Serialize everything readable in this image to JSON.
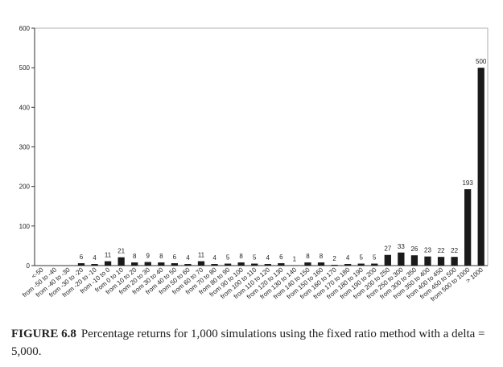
{
  "chart_data": {
    "type": "bar",
    "categories": [
      "<-50",
      "from -50 to -40",
      "from -40 to -30",
      "from -30 to -20",
      "from -20 to -10",
      "from -10 to 0",
      "from 0 to 10",
      "from 10 to 20",
      "from 20 to 30",
      "from 30 to 40",
      "from 40 to 50",
      "from 50 to 60",
      "from 60 to 70",
      "from 70 to 80",
      "from 80 to 90",
      "from 90 to 100",
      "from 100 to 110",
      "from 110 to 120",
      "from 120 to 130",
      "from 130 to 140",
      "from 140 to 150",
      "from 150 to 160",
      "from 160 to 170",
      "from 170 to 180",
      "from 180 to 190",
      "from 190 to 200",
      "from 200 to 250",
      "from 250 to 300",
      "from 300 to 350",
      "from 350 to 400",
      "from 400 to 450",
      "from 450 to 500",
      "from 500 to 1000",
      "> 1000"
    ],
    "values": [
      0,
      0,
      0,
      6,
      4,
      11,
      21,
      8,
      9,
      8,
      6,
      4,
      11,
      4,
      5,
      8,
      5,
      4,
      6,
      1,
      8,
      8,
      2,
      4,
      5,
      5,
      27,
      33,
      26,
      23,
      22,
      22,
      193,
      500
    ],
    "color": "#1a1a1a",
    "ylim": [
      0,
      600
    ],
    "yticks": [
      0,
      100,
      200,
      300,
      400,
      500,
      600
    ],
    "grid": false
  },
  "caption": {
    "label": "FIGURE 6.8",
    "text": "Percentage returns for 1,000 simulations using the fixed ratio method with a delta = 5,000."
  }
}
